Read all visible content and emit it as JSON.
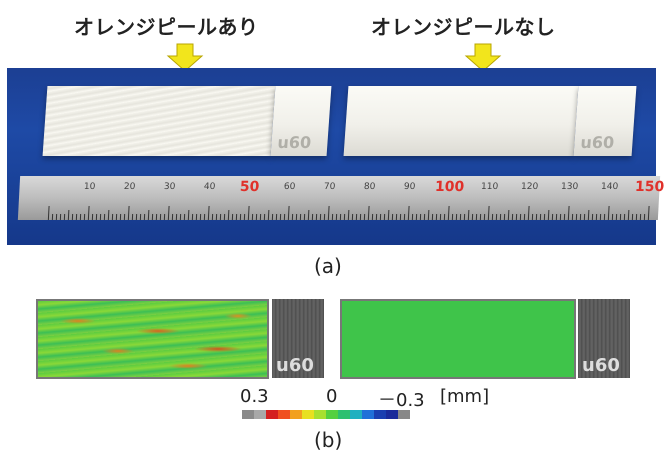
{
  "titles": {
    "left": "オレンジピールあり",
    "right": "オレンジピールなし"
  },
  "block_marking": "u60",
  "ruler_labels": [
    "10",
    "20",
    "30",
    "40",
    "50",
    "60",
    "70",
    "80",
    "90",
    "100",
    "110",
    "120",
    "130",
    "140",
    "150"
  ],
  "caption_a": "(a)",
  "caption_b": "(b)",
  "colorbar": {
    "label_pos": "0.3",
    "label_zero": "0",
    "label_neg": "－0.3",
    "unit": "[mm]",
    "colors": [
      "#8a8a8a",
      "#a8a8a8",
      "#d42020",
      "#f05020",
      "#f2a01e",
      "#e8e020",
      "#a8e030",
      "#55d040",
      "#2ec070",
      "#20b0c0",
      "#2070d8",
      "#1a3fb0",
      "#1a2b9a",
      "#888888"
    ]
  },
  "colors": {
    "arrow": "#f2e51c",
    "photo_background": "#1c3f93",
    "scan_green": "#3fc44a"
  }
}
